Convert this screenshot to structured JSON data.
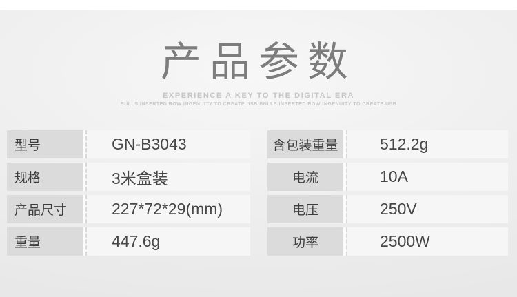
{
  "header": {
    "title": "产品参数",
    "subtitle": "EXPERIENCE A KEY TO THE DIGITAL ERA",
    "tagline": "BULLS INSERTED ROW INGENUITY TO CREATE USB BULLS INSERTED ROW INGENUITY TO CREATE USB"
  },
  "spec_tables": {
    "left": {
      "rows": [
        {
          "label": "型号",
          "value": "GN-B3043"
        },
        {
          "label": "规格",
          "value": "3米盒装"
        },
        {
          "label": "产品尺寸",
          "value": "227*72*29(mm)"
        },
        {
          "label": "重量",
          "value": "447.6g"
        }
      ]
    },
    "right": {
      "rows": [
        {
          "label": "含包装重量",
          "value": "512.2g"
        },
        {
          "label": "电流",
          "value": "10A"
        },
        {
          "label": "电压",
          "value": "250V"
        },
        {
          "label": "功率",
          "value": "2500W"
        }
      ]
    }
  },
  "colors": {
    "section_background": "#ededed",
    "top_band": "#ffffff",
    "title_text": "#7d7d7d",
    "subtitle_text": "#c5c5c5",
    "label_cell_bg": "#dbdbdb",
    "value_cell_bg": "#f6f6f6",
    "label_text": "#3d3d3d",
    "value_text": "#474747",
    "dashed_divider": "#d8d8d8"
  }
}
